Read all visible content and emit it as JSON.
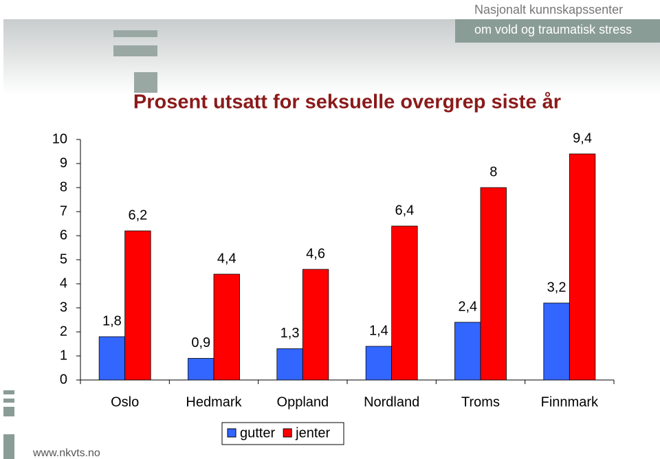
{
  "logo": {
    "line1": "Nasjonalt kunnskapssenter",
    "line2": "om vold og traumatisk stress"
  },
  "website": "www.nkvts.no",
  "chart_data": {
    "type": "bar",
    "title": "Prosent utsatt for seksuelle overgrep siste år",
    "categories": [
      "Oslo",
      "Hedmark",
      "Oppland",
      "Nordland",
      "Troms",
      "Finnmark"
    ],
    "series": [
      {
        "name": "gutter",
        "color": "#3366ff",
        "values": [
          1.8,
          0.9,
          1.3,
          1.4,
          2.4,
          3.2
        ],
        "value_labels": [
          "1,8",
          "0,9",
          "1,3",
          "1,4",
          "2,4",
          "3,2"
        ]
      },
      {
        "name": "jenter",
        "color": "#ff0000",
        "values": [
          6.2,
          4.4,
          4.6,
          6.4,
          8,
          9.4
        ],
        "value_labels": [
          "6,2",
          "4,4",
          "4,6",
          "6,4",
          "8",
          "9,4"
        ]
      }
    ],
    "ylim": [
      0,
      10
    ],
    "yticks": [
      0,
      1,
      2,
      3,
      4,
      5,
      6,
      7,
      8,
      9,
      10
    ],
    "grid": false,
    "legend": "bottom"
  }
}
